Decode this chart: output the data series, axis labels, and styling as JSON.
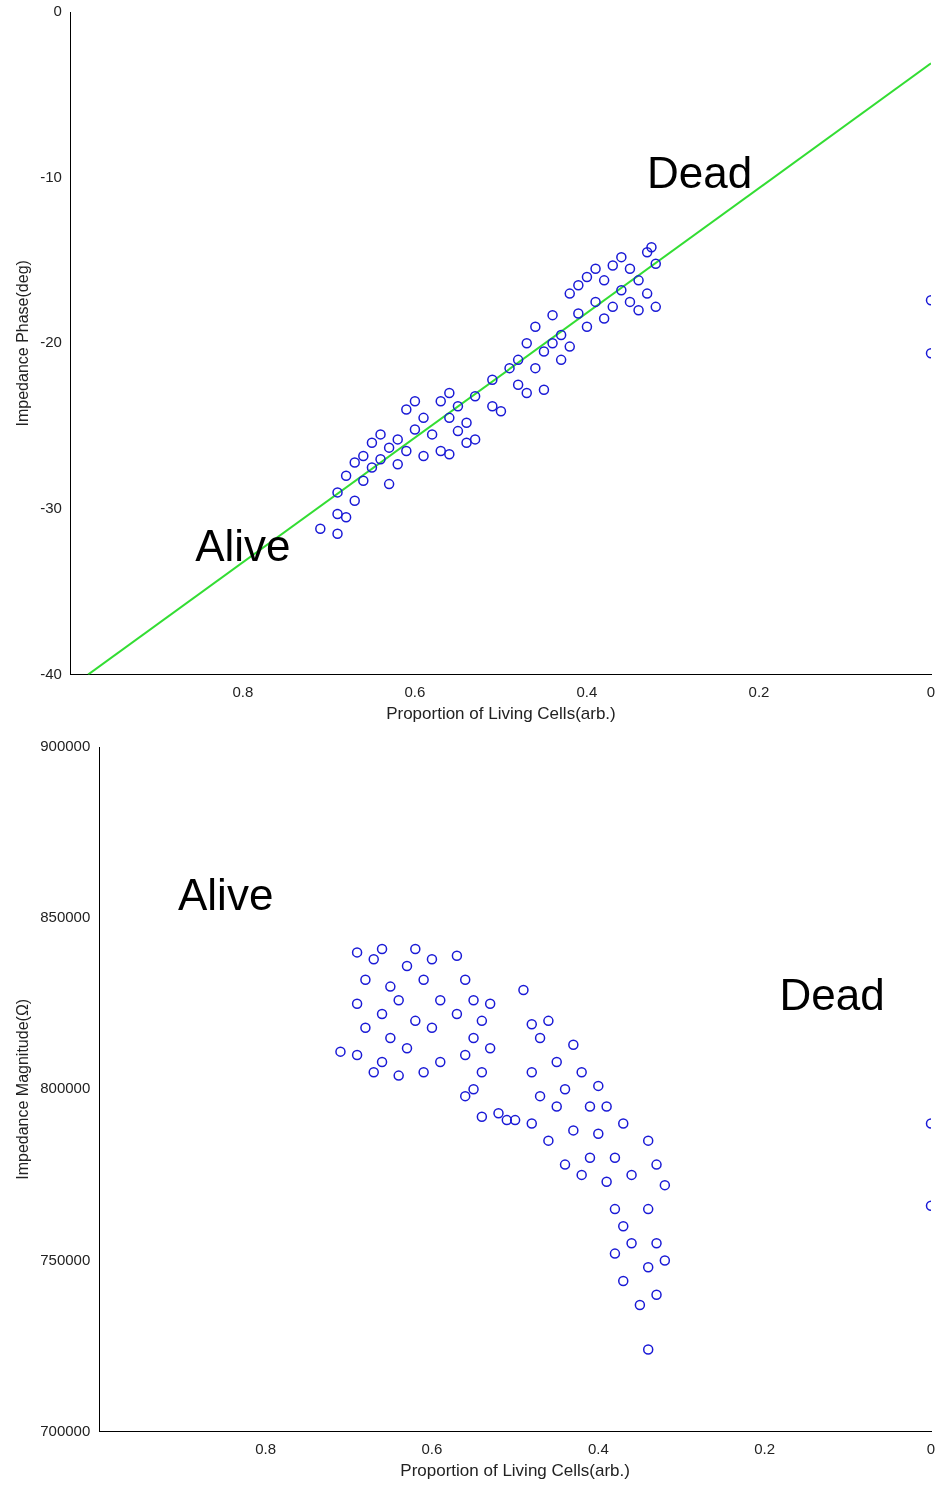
{
  "chart_data": [
    {
      "type": "scatter",
      "xlabel": "Proportion of Living Cells(arb.)",
      "ylabel": "Impedance Phase(deg)",
      "xlim": [
        1,
        0
      ],
      "xticks": [
        0.8,
        0.6,
        0.4,
        0.2,
        0
      ],
      "ylim": [
        -40,
        0
      ],
      "yticks": [
        0,
        -10,
        -20,
        -30,
        -40
      ],
      "grid": false,
      "legend": false,
      "annotations": [
        "Alive",
        "Dead"
      ],
      "series": [
        {
          "color": "#1a1ad6",
          "marker": "circle",
          "x": [
            0.71,
            0.69,
            0.69,
            0.69,
            0.68,
            0.68,
            0.67,
            0.67,
            0.66,
            0.66,
            0.65,
            0.65,
            0.64,
            0.64,
            0.63,
            0.63,
            0.62,
            0.62,
            0.61,
            0.61,
            0.6,
            0.6,
            0.59,
            0.59,
            0.58,
            0.57,
            0.57,
            0.56,
            0.56,
            0.56,
            0.55,
            0.55,
            0.54,
            0.54,
            0.53,
            0.53,
            0.51,
            0.5,
            0.51,
            0.49,
            0.48,
            0.48,
            0.47,
            0.47,
            0.46,
            0.46,
            0.45,
            0.45,
            0.44,
            0.44,
            0.43,
            0.43,
            0.42,
            0.42,
            0.41,
            0.41,
            0.4,
            0.4,
            0.39,
            0.39,
            0.38,
            0.38,
            0.37,
            0.37,
            0.36,
            0.36,
            0.35,
            0.35,
            0.34,
            0.34,
            0.33,
            0.33,
            0.32,
            0.32,
            0.325,
            0,
            0
          ],
          "values": [
            -31.2,
            -31.5,
            -30.3,
            -29,
            -28,
            -30.5,
            -27.2,
            -29.5,
            -26.8,
            -28.3,
            -26,
            -27.5,
            -25.5,
            -27,
            -26.3,
            -28.5,
            -25.8,
            -27.3,
            -24,
            -26.5,
            -23.5,
            -25.2,
            -24.5,
            -26.8,
            -25.5,
            -23.5,
            -26.5,
            -23,
            -24.5,
            -26.7,
            -25.3,
            -23.8,
            -26,
            -24.8,
            -25.8,
            -23.2,
            -23.8,
            -24.1,
            -22.2,
            -21.5,
            -21,
            -22.5,
            -20,
            -23,
            -21.5,
            -19,
            -22.8,
            -20.5,
            -18.3,
            -20,
            -19.5,
            -21,
            -20.2,
            -17,
            -16.5,
            -18.2,
            -16,
            -19,
            -17.5,
            -15.5,
            -18.5,
            -16.2,
            -15.3,
            -17.8,
            -16.8,
            -14.8,
            -17.5,
            -15.5,
            -16.2,
            -18,
            -14.5,
            -17,
            -15.2,
            -17.8,
            -14.2,
            -17.4,
            -20.6
          ]
        },
        {
          "type": "line",
          "color": "#33dd33",
          "marker": "none",
          "x": [
            0.98,
            0
          ],
          "values": [
            -40,
            -3.1
          ]
        }
      ]
    },
    {
      "type": "scatter",
      "xlabel": "Proportion of Living Cells(arb.)",
      "ylabel": "Impedance Magnitude(Ω)",
      "xlim": [
        1,
        0
      ],
      "xticks": [
        0.8,
        0.6,
        0.4,
        0.2,
        0
      ],
      "ylim": [
        700000,
        900000
      ],
      "yticks": [
        700000,
        750000,
        800000,
        850000,
        900000
      ],
      "grid": false,
      "legend": false,
      "annotations": [
        "Alive",
        "Dead"
      ],
      "series": [
        {
          "color": "#1a1ad6",
          "marker": "circle",
          "x": [
            0.71,
            0.69,
            0.69,
            0.69,
            0.68,
            0.68,
            0.67,
            0.67,
            0.66,
            0.66,
            0.66,
            0.65,
            0.65,
            0.64,
            0.64,
            0.63,
            0.63,
            0.62,
            0.62,
            0.61,
            0.61,
            0.6,
            0.6,
            0.59,
            0.59,
            0.57,
            0.57,
            0.56,
            0.56,
            0.56,
            0.55,
            0.55,
            0.55,
            0.54,
            0.54,
            0.53,
            0.53,
            0.54,
            0.52,
            0.51,
            0.5,
            0.49,
            0.48,
            0.48,
            0.48,
            0.47,
            0.47,
            0.46,
            0.46,
            0.45,
            0.45,
            0.44,
            0.44,
            0.43,
            0.43,
            0.42,
            0.42,
            0.41,
            0.41,
            0.4,
            0.4,
            0.39,
            0.39,
            0.38,
            0.38,
            0.38,
            0.37,
            0.37,
            0.37,
            0.36,
            0.36,
            0.35,
            0.34,
            0.34,
            0.34,
            0.33,
            0.33,
            0.33,
            0.32,
            0.32,
            0.34,
            0,
            0
          ],
          "values": [
            811000,
            840000,
            825000,
            810000,
            832000,
            818000,
            805000,
            838000,
            841000,
            822000,
            808000,
            830000,
            815000,
            804000,
            826000,
            836000,
            812000,
            841000,
            820000,
            805000,
            832000,
            818000,
            838000,
            808000,
            826000,
            839000,
            822000,
            832000,
            810000,
            798000,
            826000,
            815000,
            800000,
            805000,
            820000,
            812000,
            825000,
            792000,
            793000,
            791000,
            791000,
            829000,
            819000,
            805000,
            790000,
            815000,
            798000,
            820000,
            785000,
            808000,
            795000,
            778000,
            800000,
            813000,
            788000,
            775000,
            805000,
            795000,
            780000,
            801000,
            787000,
            773000,
            795000,
            765000,
            780000,
            752000,
            790000,
            760000,
            744000,
            775000,
            755000,
            737000,
            785000,
            765000,
            748000,
            778000,
            755000,
            740000,
            772000,
            750000,
            724000,
            790000,
            766000
          ]
        }
      ]
    }
  ]
}
